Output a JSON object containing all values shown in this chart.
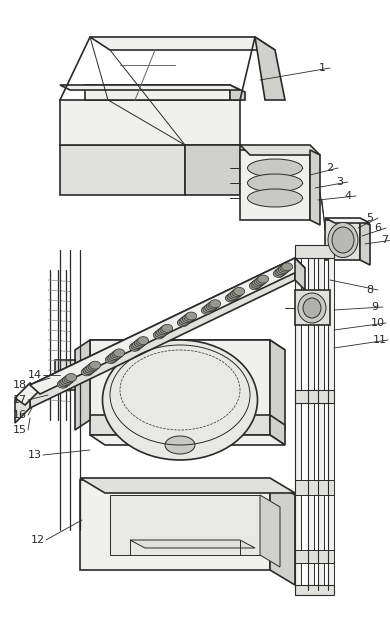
{
  "bg_color": "#ffffff",
  "line_color": "#2a2a2a",
  "lw_main": 1.2,
  "lw_thin": 0.7,
  "lw_leader": 0.6,
  "label_fontsize": 8,
  "figsize": [
    3.9,
    6.3
  ],
  "dpi": 100,
  "dot_fill": "#888888",
  "face_light": "#f0f0ee",
  "face_mid": "#e0e0dc",
  "face_dark": "#d0d0cc"
}
